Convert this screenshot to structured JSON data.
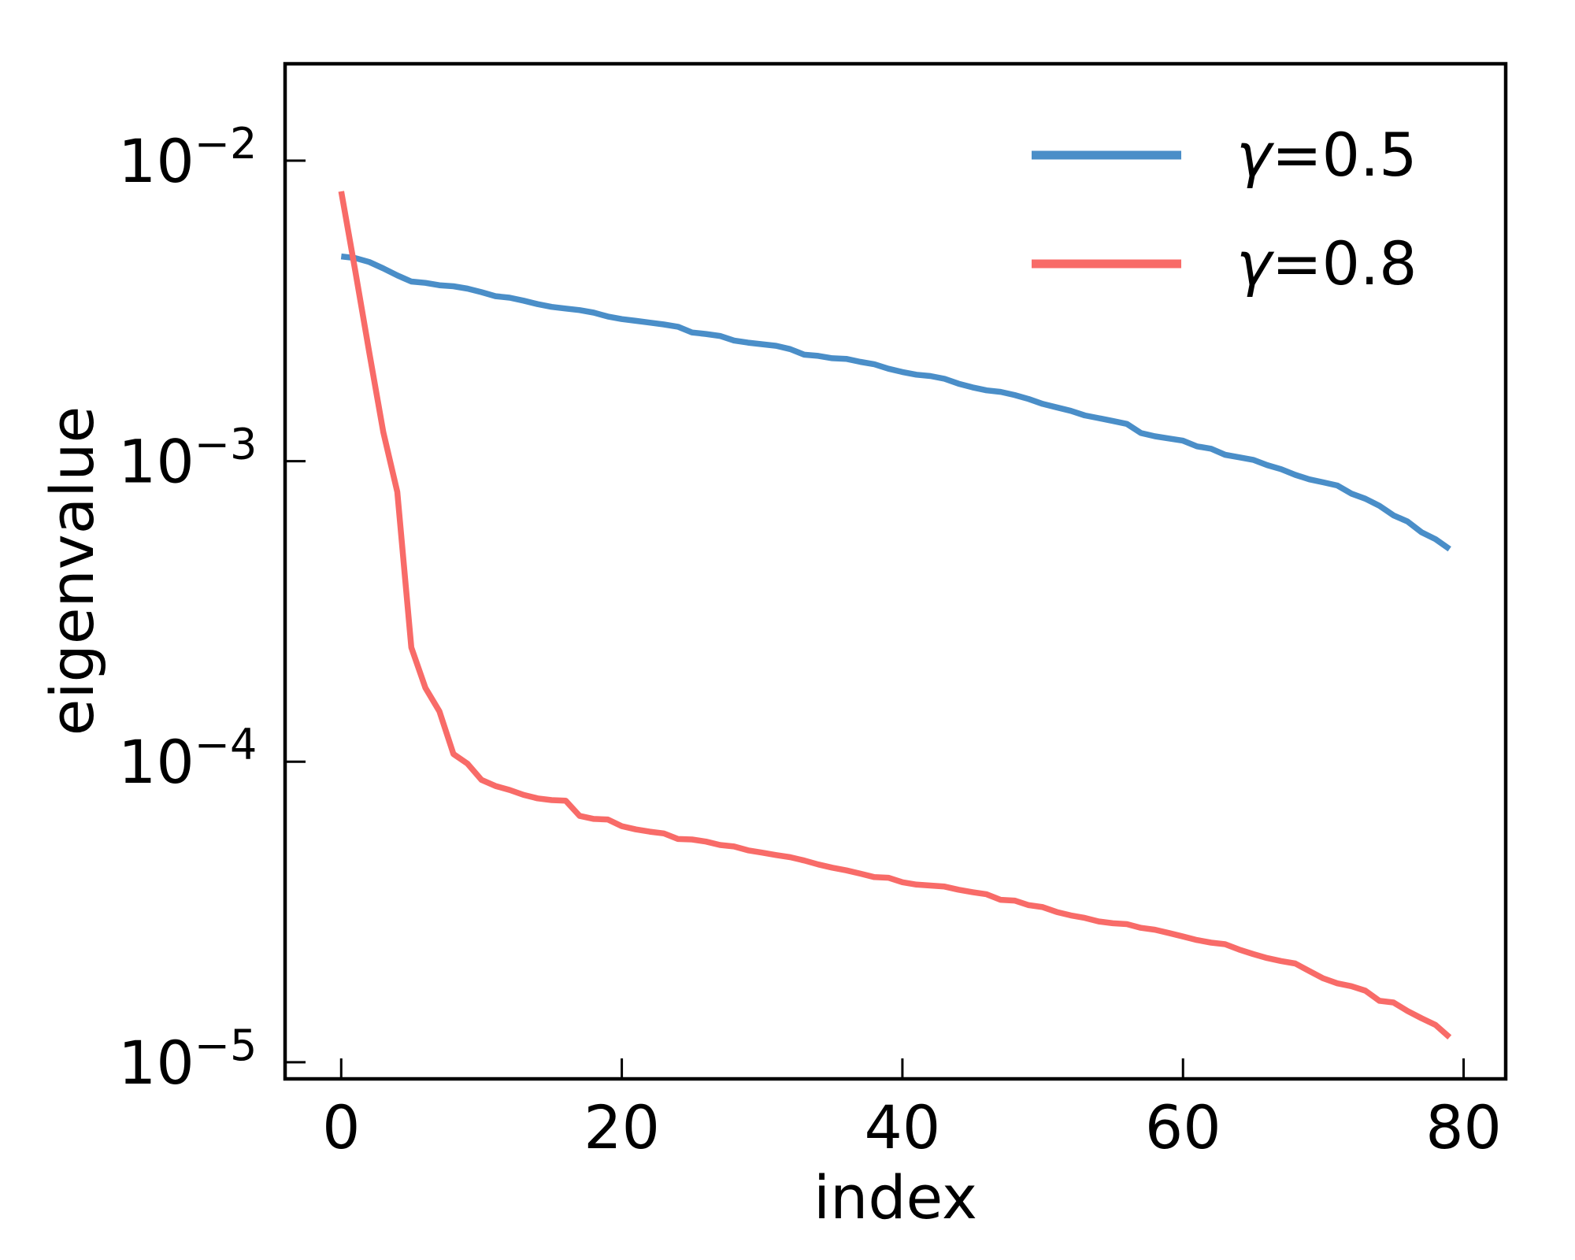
{
  "chart_data": {
    "type": "line",
    "title": "",
    "xlabel": "index",
    "ylabel": "eigenvalue",
    "xlim": [
      -4,
      83
    ],
    "ylim": [
      8.8e-06,
      0.021
    ],
    "yscale": "log",
    "grid": false,
    "legend_position": "top-right",
    "xticks": [
      {
        "value": 0,
        "label": "0"
      },
      {
        "value": 20,
        "label": "20"
      },
      {
        "value": 40,
        "label": "40"
      },
      {
        "value": 60,
        "label": "60"
      },
      {
        "value": 80,
        "label": "80"
      }
    ],
    "yticks": [
      {
        "value": 0.01,
        "base": "10",
        "exp": "−2"
      },
      {
        "value": 0.001,
        "base": "10",
        "exp": "−3"
      },
      {
        "value": 0.0001,
        "base": "10",
        "exp": "−4"
      },
      {
        "value": 1e-05,
        "base": "10",
        "exp": "−5"
      }
    ],
    "series": [
      {
        "name": "γ=0.5",
        "name_symbol": "γ",
        "name_rest": "=0.5",
        "color": "#4a8ec8",
        "x": [
          0,
          1,
          2,
          3,
          4,
          5,
          6,
          7,
          8,
          9,
          10,
          11,
          12,
          13,
          14,
          15,
          16,
          17,
          18,
          19,
          20,
          21,
          22,
          23,
          24,
          25,
          26,
          27,
          28,
          29,
          30,
          31,
          32,
          33,
          34,
          35,
          36,
          37,
          38,
          39,
          40,
          41,
          42,
          43,
          44,
          45,
          46,
          47,
          48,
          49,
          50,
          51,
          52,
          53,
          54,
          55,
          56,
          57,
          58,
          59,
          60,
          61,
          62,
          63,
          64,
          65,
          66,
          67,
          68,
          69,
          70,
          71,
          72,
          73,
          74,
          75,
          76,
          77,
          78,
          79
        ],
        "values": [
          0.0048,
          0.00474,
          0.0046,
          0.00438,
          0.00415,
          0.00396,
          0.00392,
          0.00385,
          0.00382,
          0.00375,
          0.00365,
          0.00354,
          0.0035,
          0.00342,
          0.00333,
          0.00326,
          0.00322,
          0.00318,
          0.00312,
          0.00303,
          0.00297,
          0.00293,
          0.00289,
          0.00285,
          0.0028,
          0.00268,
          0.00265,
          0.00261,
          0.00252,
          0.00248,
          0.00245,
          0.00242,
          0.00236,
          0.00226,
          0.00224,
          0.0022,
          0.00219,
          0.00214,
          0.0021,
          0.00203,
          0.00198,
          0.00194,
          0.00192,
          0.00188,
          0.00181,
          0.00176,
          0.00172,
          0.0017,
          0.00166,
          0.00161,
          0.00155,
          0.00151,
          0.00147,
          0.00142,
          0.00139,
          0.00136,
          0.00133,
          0.00124,
          0.00121,
          0.00119,
          0.00117,
          0.00112,
          0.0011,
          0.00105,
          0.00103,
          0.00101,
          0.00097,
          0.00094,
          0.0009,
          0.00087,
          0.00085,
          0.00083,
          0.00078,
          0.00075,
          0.00071,
          0.00066,
          0.00063,
          0.00058,
          0.00055,
          0.00051
        ]
      },
      {
        "name": "γ=0.8",
        "name_symbol": "γ",
        "name_rest": "=0.8",
        "color": "#f86b68",
        "x": [
          0,
          1,
          2,
          3,
          4,
          5,
          6,
          7,
          8,
          9,
          10,
          11,
          12,
          13,
          14,
          15,
          16,
          17,
          18,
          19,
          20,
          21,
          22,
          23,
          24,
          25,
          26,
          27,
          28,
          29,
          30,
          31,
          32,
          33,
          34,
          35,
          36,
          37,
          38,
          39,
          40,
          41,
          42,
          43,
          44,
          45,
          46,
          47,
          48,
          49,
          50,
          51,
          52,
          53,
          54,
          55,
          56,
          57,
          58,
          59,
          60,
          61,
          62,
          63,
          64,
          65,
          66,
          67,
          68,
          69,
          70,
          71,
          72,
          73,
          74,
          75,
          76,
          77,
          78,
          79
        ],
        "values": [
          0.0079,
          0.0043,
          0.0023,
          0.00125,
          0.00079,
          0.00024,
          0.000176,
          0.000147,
          0.000106,
          9.85e-05,
          8.7e-05,
          8.3e-05,
          8.05e-05,
          7.75e-05,
          7.55e-05,
          7.45e-05,
          7.42e-05,
          6.6e-05,
          6.45e-05,
          6.42e-05,
          6.1e-05,
          5.95e-05,
          5.85e-05,
          5.77e-05,
          5.53e-05,
          5.51e-05,
          5.42e-05,
          5.28e-05,
          5.22e-05,
          5.07e-05,
          4.98e-05,
          4.89e-05,
          4.81e-05,
          4.69e-05,
          4.55e-05,
          4.44e-05,
          4.35e-05,
          4.24e-05,
          4.13e-05,
          4.11e-05,
          3.97e-05,
          3.9e-05,
          3.87e-05,
          3.84e-05,
          3.75e-05,
          3.68e-05,
          3.62e-05,
          3.47e-05,
          3.45e-05,
          3.33e-05,
          3.28e-05,
          3.16e-05,
          3.08e-05,
          3.02e-05,
          2.94e-05,
          2.9e-05,
          2.88e-05,
          2.8e-05,
          2.76e-05,
          2.69e-05,
          2.62e-05,
          2.55e-05,
          2.5e-05,
          2.47e-05,
          2.37e-05,
          2.29e-05,
          2.22e-05,
          2.17e-05,
          2.13e-05,
          2.01e-05,
          1.9e-05,
          1.83e-05,
          1.79e-05,
          1.73e-05,
          1.6e-05,
          1.58e-05,
          1.48e-05,
          1.4e-05,
          1.33e-05,
          1.21e-05
        ]
      }
    ]
  }
}
